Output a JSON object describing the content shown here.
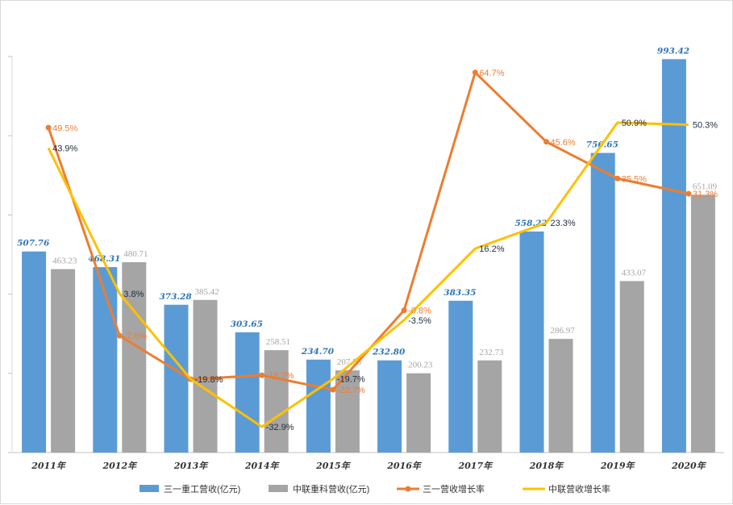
{
  "chart_data": {
    "type": "bar",
    "categories": [
      "2011年",
      "2012年",
      "2013年",
      "2014年",
      "2015年",
      "2016年",
      "2017年",
      "2018年",
      "2019年",
      "2020年"
    ],
    "series": [
      {
        "name": "三一重工营收(亿元)",
        "kind": "bar",
        "axis": "left",
        "color": "#5B9BD5",
        "values": [
          507.76,
          468.31,
          373.28,
          303.65,
          234.7,
          232.8,
          383.35,
          558.22,
          756.65,
          993.42
        ],
        "labels": [
          "507.76",
          "468.31",
          "373.28",
          "303.65",
          "234.70",
          "232.80",
          "383.35",
          "558.22",
          "756.65",
          "993.42"
        ]
      },
      {
        "name": "中联重科营收(亿元)",
        "kind": "bar",
        "axis": "left",
        "color": "#A5A5A5",
        "values": [
          463.23,
          480.71,
          385.42,
          258.51,
          207.53,
          200.23,
          232.73,
          286.97,
          433.07,
          651.09
        ],
        "labels": [
          "463.23",
          "480.71",
          "385.42",
          "258.51",
          "207.53",
          "200.23",
          "232.73",
          "286.97",
          "433.07",
          "651.09"
        ]
      },
      {
        "name": "三一营收增长率",
        "kind": "line",
        "axis": "right",
        "color": "#ED7D31",
        "values": [
          49.5,
          -7.8,
          -19.8,
          -18.7,
          -22.7,
          -0.8,
          64.7,
          45.6,
          35.5,
          31.3
        ],
        "labels": [
          "49.5%",
          "-7.8%",
          "-19.8%",
          "-18.7%",
          "-22.7%",
          "-0.8%",
          "64.7%",
          "45.6%",
          "35.5%",
          "31.3%"
        ]
      },
      {
        "name": "中联营收增长率",
        "kind": "line",
        "axis": "right",
        "color": "#FFC000",
        "values": [
          43.9,
          3.8,
          -19.8,
          -32.9,
          -19.7,
          -3.5,
          16.2,
          23.3,
          50.9,
          50.3
        ],
        "labels": [
          "43.9%",
          "3.8%",
          "-19.8%",
          "-32.9%",
          "-19.7%",
          "-3.5%",
          "16.2%",
          "23.3%",
          "50.9%",
          "50.3%"
        ]
      }
    ],
    "ylim_left": [
      0,
      1100
    ],
    "ylim_right": [
      -40,
      80
    ],
    "grid": false,
    "legend_position": "bottom"
  }
}
